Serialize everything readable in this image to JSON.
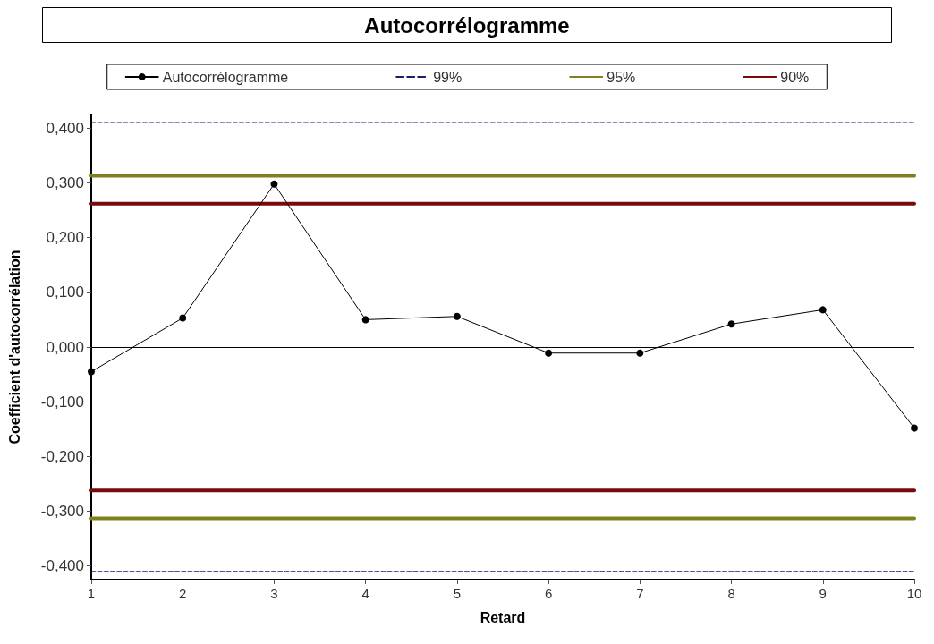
{
  "chart_data": {
    "type": "line",
    "title": "Autocorrélogramme",
    "xlabel": "Retard",
    "ylabel": "Coefficient d'autocorrélation",
    "x": [
      1,
      2,
      3,
      4,
      5,
      6,
      7,
      8,
      9,
      10
    ],
    "series": [
      {
        "name": "Autocorrélogramme",
        "color": "#000000",
        "marker": "circle",
        "line_style": "solid",
        "values": [
          -0.045,
          0.053,
          0.298,
          0.05,
          0.056,
          -0.011,
          -0.011,
          0.042,
          0.068,
          -0.148
        ]
      },
      {
        "name": "99%",
        "color": "#1a1a6e",
        "marker": "none",
        "line_style": "dashed",
        "values": [
          0.41,
          0.41,
          0.41,
          0.41,
          0.41,
          0.41,
          0.41,
          0.41,
          0.41,
          0.41
        ]
      },
      {
        "name": "95%",
        "color": "#808020",
        "marker": "none",
        "line_style": "solid",
        "values": [
          0.313,
          0.313,
          0.313,
          0.313,
          0.313,
          0.313,
          0.313,
          0.313,
          0.313,
          0.313
        ]
      },
      {
        "name": "90%",
        "color": "#7a0a0a",
        "marker": "none",
        "line_style": "solid",
        "values": [
          0.262,
          0.262,
          0.262,
          0.262,
          0.262,
          0.262,
          0.262,
          0.262,
          0.262,
          0.262
        ]
      },
      {
        "color": "#1a1a6e",
        "marker": "none",
        "line_style": "dashed",
        "values": [
          -0.41,
          -0.41,
          -0.41,
          -0.41,
          -0.41,
          -0.41,
          -0.41,
          -0.41,
          -0.41,
          -0.41
        ]
      },
      {
        "color": "#808020",
        "marker": "none",
        "line_style": "solid",
        "values": [
          -0.313,
          -0.313,
          -0.313,
          -0.313,
          -0.313,
          -0.313,
          -0.313,
          -0.313,
          -0.313,
          -0.313
        ]
      },
      {
        "color": "#7a0a0a",
        "marker": "none",
        "line_style": "solid",
        "values": [
          -0.262,
          -0.262,
          -0.262,
          -0.262,
          -0.262,
          -0.262,
          -0.262,
          -0.262,
          -0.262,
          -0.262
        ]
      }
    ],
    "ref_lines": [
      {
        "axis": "y",
        "value": 0,
        "color": "#000000"
      }
    ],
    "xlim": [
      1,
      10
    ],
    "xticks": [
      1,
      2,
      3,
      4,
      5,
      6,
      7,
      8,
      9,
      10
    ],
    "ylim": [
      -0.425,
      0.425
    ],
    "yticks": [
      {
        "value": -0.4,
        "label": "-0,400"
      },
      {
        "value": -0.3,
        "label": "-0,300"
      },
      {
        "value": -0.2,
        "label": "-0,200"
      },
      {
        "value": -0.1,
        "label": "-0,100"
      },
      {
        "value": 0,
        "label": "0,000"
      },
      {
        "value": 0.1,
        "label": "0,100"
      },
      {
        "value": 0.2,
        "label": "0,200"
      },
      {
        "value": 0.3,
        "label": "0,300"
      },
      {
        "value": 0.4,
        "label": "0,400"
      }
    ],
    "grid": false,
    "legend": "top"
  }
}
